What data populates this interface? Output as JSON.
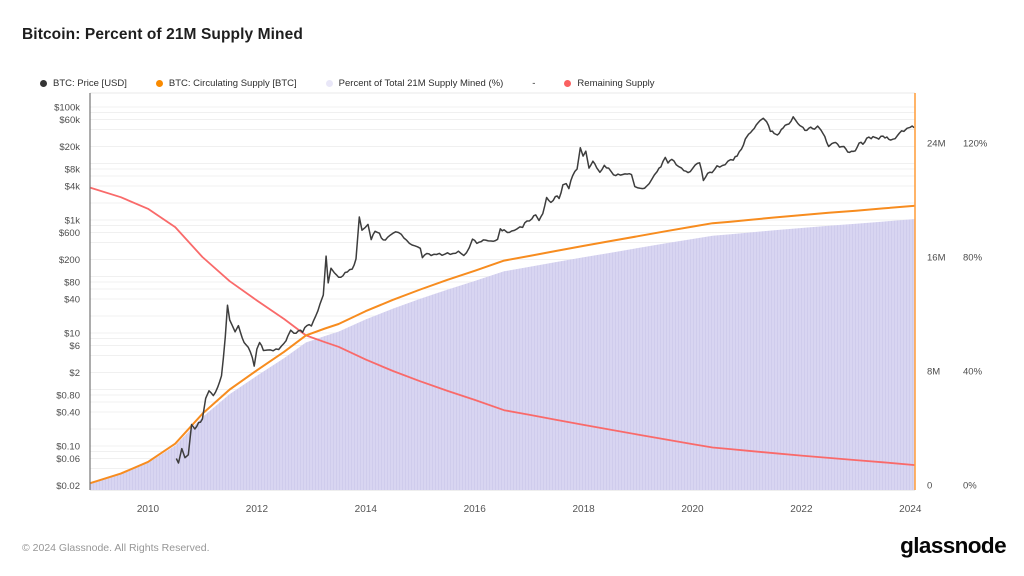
{
  "header": {
    "title": "Bitcoin: Percent of 21M Supply Mined"
  },
  "footer": {
    "copyright": "© 2024 Glassnode. All Rights Reserved.",
    "brand": "glassnode"
  },
  "legend": [
    {
      "label": "BTC: Price [USD]",
      "color": "#343434"
    },
    {
      "label": "BTC: Circulating Supply [BTC]",
      "color": "#f98a00"
    },
    {
      "label": "Percent of Total 21M Supply Mined (%)",
      "color": "#e9e7f8"
    },
    {
      "label": "-",
      "color": ""
    },
    {
      "label": "Remaining Supply",
      "color": "#fa6060"
    }
  ],
  "chart_data": {
    "type": "line",
    "title": "Bitcoin: Percent of 21M Supply Mined",
    "grid": "on",
    "legend_position": "top",
    "x_axis": {
      "range": [
        2008.93,
        2024.1
      ],
      "ticks": [
        2010,
        2012,
        2014,
        2016,
        2018,
        2020,
        2022,
        2024
      ]
    },
    "price_axis": {
      "side": "left",
      "scale": "log",
      "unit": "USD",
      "ticks": [
        {
          "label": "$100k",
          "value": 100000
        },
        {
          "label": "$60k",
          "value": 60000
        },
        {
          "label": "$20k",
          "value": 20000
        },
        {
          "label": "$8k",
          "value": 8000
        },
        {
          "label": "$4k",
          "value": 4000
        },
        {
          "label": "$1k",
          "value": 1000
        },
        {
          "label": "$600",
          "value": 600
        },
        {
          "label": "$200",
          "value": 200
        },
        {
          "label": "$80",
          "value": 80
        },
        {
          "label": "$40",
          "value": 40
        },
        {
          "label": "$10",
          "value": 10
        },
        {
          "label": "$6",
          "value": 6
        },
        {
          "label": "$2",
          "value": 2
        },
        {
          "label": "$0.80",
          "value": 0.8
        },
        {
          "label": "$0.40",
          "value": 0.4
        },
        {
          "label": "$0.10",
          "value": 0.1
        },
        {
          "label": "$0.06",
          "value": 0.06
        },
        {
          "label": "$0.02",
          "value": 0.02
        }
      ]
    },
    "supply_axis": {
      "side": "right",
      "scale": "linear",
      "unit": "M BTC",
      "range": [
        0,
        24
      ],
      "ticks": [
        {
          "label": "24M",
          "value": 24
        },
        {
          "label": "16M",
          "value": 16
        },
        {
          "label": "8M",
          "value": 8
        },
        {
          "label": "0",
          "value": 0
        }
      ]
    },
    "percent_axis": {
      "side": "right",
      "scale": "linear",
      "unit": "%",
      "range": [
        0,
        120
      ],
      "ticks": [
        {
          "label": "120%",
          "value": 120
        },
        {
          "label": "80%",
          "value": 80
        },
        {
          "label": "40%",
          "value": 40
        },
        {
          "label": "0%",
          "value": 0
        }
      ]
    },
    "gridline_values": [
      100000,
      80000,
      60000,
      40000,
      20000,
      10000,
      8000,
      6000,
      4000,
      2000,
      1000,
      800,
      600,
      400,
      200,
      100,
      80,
      60,
      40,
      20,
      10,
      8,
      6,
      4,
      2,
      1,
      0.8,
      0.6,
      0.4,
      0.2,
      0.1,
      0.08,
      0.06,
      0.04,
      0.02
    ],
    "series": [
      {
        "name": "BTC: Price [USD]",
        "axis": "price",
        "color": "#3d3d3d",
        "points": [
          [
            2010.52,
            0.06
          ],
          [
            2010.56,
            0.05
          ],
          [
            2010.62,
            0.09
          ],
          [
            2010.68,
            0.062
          ],
          [
            2010.74,
            0.07
          ],
          [
            2010.8,
            0.24
          ],
          [
            2010.86,
            0.2
          ],
          [
            2010.93,
            0.26
          ],
          [
            2011.0,
            0.3
          ],
          [
            2011.06,
            0.7
          ],
          [
            2011.12,
            0.95
          ],
          [
            2011.2,
            0.78
          ],
          [
            2011.28,
            1.1
          ],
          [
            2011.35,
            1.75
          ],
          [
            2011.42,
            8.6
          ],
          [
            2011.46,
            31
          ],
          [
            2011.5,
            17
          ],
          [
            2011.54,
            14
          ],
          [
            2011.6,
            10.5
          ],
          [
            2011.66,
            13.5
          ],
          [
            2011.73,
            8.2
          ],
          [
            2011.8,
            6.2
          ],
          [
            2011.88,
            4.6
          ],
          [
            2011.95,
            2.6
          ],
          [
            2012.0,
            5.2
          ],
          [
            2012.05,
            6.8
          ],
          [
            2012.12,
            4.9
          ],
          [
            2012.2,
            5.0
          ],
          [
            2012.3,
            4.85
          ],
          [
            2012.4,
            5.1
          ],
          [
            2012.5,
            6.6
          ],
          [
            2012.57,
            8.9
          ],
          [
            2012.62,
            11.2
          ],
          [
            2012.68,
            9.9
          ],
          [
            2012.76,
            10.9
          ],
          [
            2012.84,
            10.3
          ],
          [
            2012.92,
            13.5
          ],
          [
            2013.0,
            13.3
          ],
          [
            2013.08,
            20
          ],
          [
            2013.16,
            33
          ],
          [
            2013.22,
            47
          ],
          [
            2013.27,
            230
          ],
          [
            2013.31,
            77
          ],
          [
            2013.36,
            140
          ],
          [
            2013.42,
            117
          ],
          [
            2013.5,
            97
          ],
          [
            2013.58,
            103
          ],
          [
            2013.66,
            120
          ],
          [
            2013.75,
            135
          ],
          [
            2013.82,
            205
          ],
          [
            2013.88,
            1130
          ],
          [
            2013.93,
            660
          ],
          [
            2013.99,
            740
          ],
          [
            2014.04,
            835
          ],
          [
            2014.1,
            450
          ],
          [
            2014.17,
            630
          ],
          [
            2014.25,
            585
          ],
          [
            2014.32,
            445
          ],
          [
            2014.4,
            495
          ],
          [
            2014.5,
            585
          ],
          [
            2014.6,
            600
          ],
          [
            2014.7,
            480
          ],
          [
            2014.8,
            385
          ],
          [
            2014.9,
            350
          ],
          [
            2015.0,
            315
          ],
          [
            2015.04,
            215
          ],
          [
            2015.12,
            255
          ],
          [
            2015.2,
            235
          ],
          [
            2015.3,
            245
          ],
          [
            2015.4,
            237
          ],
          [
            2015.5,
            263
          ],
          [
            2015.6,
            255
          ],
          [
            2015.7,
            280
          ],
          [
            2015.8,
            235
          ],
          [
            2015.9,
            325
          ],
          [
            2015.96,
            460
          ],
          [
            2016.04,
            385
          ],
          [
            2016.12,
            415
          ],
          [
            2016.2,
            440
          ],
          [
            2016.3,
            425
          ],
          [
            2016.42,
            455
          ],
          [
            2016.47,
            700
          ],
          [
            2016.54,
            670
          ],
          [
            2016.6,
            600
          ],
          [
            2016.68,
            640
          ],
          [
            2016.78,
            700
          ],
          [
            2016.88,
            740
          ],
          [
            2016.96,
            960
          ],
          [
            2017.05,
            1050
          ],
          [
            2017.12,
            1230
          ],
          [
            2017.18,
            980
          ],
          [
            2017.25,
            1300
          ],
          [
            2017.32,
            2500
          ],
          [
            2017.4,
            2050
          ],
          [
            2017.48,
            2600
          ],
          [
            2017.55,
            2400
          ],
          [
            2017.62,
            4200
          ],
          [
            2017.68,
            4400
          ],
          [
            2017.73,
            3600
          ],
          [
            2017.8,
            6100
          ],
          [
            2017.88,
            8000
          ],
          [
            2017.94,
            19000
          ],
          [
            2017.99,
            13500
          ],
          [
            2018.04,
            16500
          ],
          [
            2018.1,
            8300
          ],
          [
            2018.17,
            11000
          ],
          [
            2018.24,
            8400
          ],
          [
            2018.3,
            7000
          ],
          [
            2018.38,
            9300
          ],
          [
            2018.46,
            8300
          ],
          [
            2018.55,
            6300
          ],
          [
            2018.63,
            6500
          ],
          [
            2018.72,
            6400
          ],
          [
            2018.8,
            6500
          ],
          [
            2018.88,
            6350
          ],
          [
            2018.94,
            3900
          ],
          [
            2019.0,
            3700
          ],
          [
            2019.08,
            3600
          ],
          [
            2019.16,
            4000
          ],
          [
            2019.25,
            5200
          ],
          [
            2019.35,
            7200
          ],
          [
            2019.42,
            8700
          ],
          [
            2019.5,
            12800
          ],
          [
            2019.55,
            10200
          ],
          [
            2019.62,
            11800
          ],
          [
            2019.7,
            9500
          ],
          [
            2019.8,
            8300
          ],
          [
            2019.88,
            7300
          ],
          [
            2019.96,
            7200
          ],
          [
            2020.05,
            9400
          ],
          [
            2020.13,
            10300
          ],
          [
            2020.2,
            5000
          ],
          [
            2020.28,
            6700
          ],
          [
            2020.36,
            6900
          ],
          [
            2020.45,
            9100
          ],
          [
            2020.55,
            9200
          ],
          [
            2020.65,
            11000
          ],
          [
            2020.75,
            11500
          ],
          [
            2020.82,
            13500
          ],
          [
            2020.9,
            18000
          ],
          [
            2020.97,
            27000
          ],
          [
            2021.03,
            33000
          ],
          [
            2021.1,
            38500
          ],
          [
            2021.17,
            48000
          ],
          [
            2021.24,
            57500
          ],
          [
            2021.3,
            63000
          ],
          [
            2021.36,
            55000
          ],
          [
            2021.43,
            37000
          ],
          [
            2021.5,
            34000
          ],
          [
            2021.56,
            32000
          ],
          [
            2021.63,
            40000
          ],
          [
            2021.7,
            47500
          ],
          [
            2021.77,
            50000
          ],
          [
            2021.85,
            67000
          ],
          [
            2021.9,
            57000
          ],
          [
            2021.97,
            47000
          ],
          [
            2022.03,
            43500
          ],
          [
            2022.1,
            38500
          ],
          [
            2022.17,
            44000
          ],
          [
            2022.24,
            40500
          ],
          [
            2022.3,
            46000
          ],
          [
            2022.36,
            39000
          ],
          [
            2022.43,
            30000
          ],
          [
            2022.5,
            20000
          ],
          [
            2022.56,
            22500
          ],
          [
            2022.63,
            23500
          ],
          [
            2022.7,
            19500
          ],
          [
            2022.78,
            20000
          ],
          [
            2022.85,
            16000
          ],
          [
            2022.92,
            16500
          ],
          [
            2022.99,
            16800
          ],
          [
            2023.06,
            23000
          ],
          [
            2023.13,
            22000
          ],
          [
            2023.2,
            28000
          ],
          [
            2023.28,
            27500
          ],
          [
            2023.35,
            29000
          ],
          [
            2023.42,
            27000
          ],
          [
            2023.5,
            30500
          ],
          [
            2023.57,
            29500
          ],
          [
            2023.64,
            26000
          ],
          [
            2023.72,
            27500
          ],
          [
            2023.8,
            34500
          ],
          [
            2023.88,
            37000
          ],
          [
            2023.94,
            42000
          ],
          [
            2024.0,
            43800
          ],
          [
            2024.07,
            43000
          ]
        ]
      },
      {
        "name": "BTC: Circulating Supply [BTC]",
        "axis": "supply",
        "color": "#f78c1f",
        "unit": "M BTC",
        "points": [
          [
            2008.93,
            0.12
          ],
          [
            2009.5,
            0.8
          ],
          [
            2010.0,
            1.62
          ],
          [
            2010.5,
            2.9
          ],
          [
            2011.0,
            5.0
          ],
          [
            2011.5,
            6.7
          ],
          [
            2012.0,
            8.05
          ],
          [
            2012.5,
            9.35
          ],
          [
            2012.9,
            10.5
          ],
          [
            2013.25,
            10.98
          ],
          [
            2013.5,
            11.3
          ],
          [
            2014.0,
            12.2
          ],
          [
            2014.5,
            13.0
          ],
          [
            2015.0,
            13.72
          ],
          [
            2015.5,
            14.4
          ],
          [
            2016.0,
            15.03
          ],
          [
            2016.54,
            15.75
          ],
          [
            2017.0,
            16.07
          ],
          [
            2017.5,
            16.43
          ],
          [
            2018.0,
            16.78
          ],
          [
            2018.5,
            17.12
          ],
          [
            2019.0,
            17.46
          ],
          [
            2019.5,
            17.8
          ],
          [
            2020.0,
            18.13
          ],
          [
            2020.37,
            18.37
          ],
          [
            2020.7,
            18.48
          ],
          [
            2021.0,
            18.59
          ],
          [
            2021.5,
            18.77
          ],
          [
            2022.0,
            18.94
          ],
          [
            2022.5,
            19.1
          ],
          [
            2023.0,
            19.25
          ],
          [
            2023.5,
            19.41
          ],
          [
            2024.09,
            19.6
          ]
        ]
      },
      {
        "name": "Percent of Total 21M Supply Mined (%)",
        "axis": "percent",
        "fill": "#d6d3f0",
        "derived_from": "BTC: Circulating Supply [BTC]",
        "formula": "circulating / 21 * 100"
      },
      {
        "name": "Remaining Supply",
        "axis": "supply",
        "color": "#f96a6a",
        "derived_from": "BTC: Circulating Supply [BTC]",
        "formula": "21 - circulating"
      }
    ]
  }
}
